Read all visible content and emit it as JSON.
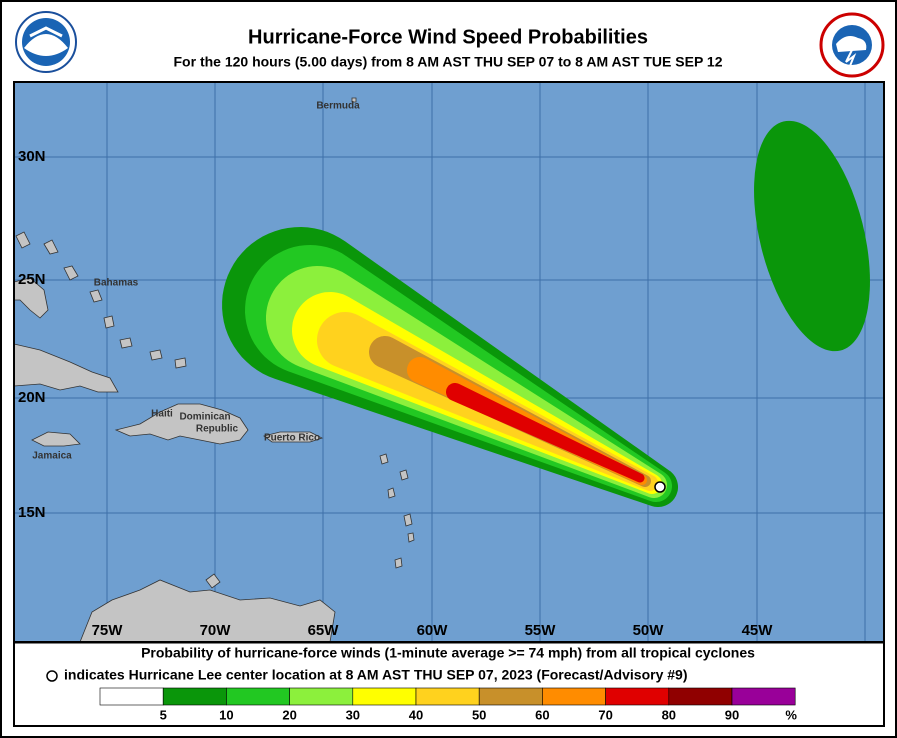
{
  "header": {
    "title": "Hurricane-Force Wind Speed Probabilities",
    "subtitle": "For the 120 hours (5.00 days) from 8 AM AST THU SEP 07 to 8 AM AST TUE SEP 12"
  },
  "map": {
    "lat_labels": [
      "30N",
      "25N",
      "20N",
      "15N"
    ],
    "lon_labels": [
      "75W",
      "70W",
      "65W",
      "60W",
      "55W",
      "50W",
      "45W"
    ],
    "places": [
      [
        "Bermuda"
      ],
      [
        "Bahamas"
      ],
      [
        "Haiti"
      ],
      [
        "Dominican",
        "Republic"
      ],
      [
        "Puerto Rico"
      ],
      [
        "Jamaica"
      ]
    ]
  },
  "legend": {
    "line1": "Probability of hurricane-force winds (1-minute average >= 74 mph) from all tropical cyclones",
    "line2": "indicates Hurricane Lee center location at 8 AM AST THU SEP 07, 2023 (Forecast/Advisory #9)",
    "scale": [
      5,
      10,
      20,
      30,
      40,
      50,
      60,
      70,
      80,
      90
    ],
    "unit": "%",
    "colors": [
      "#ffffff",
      "#0a960a",
      "#22c822",
      "#8cf03c",
      "#ffff00",
      "#ffd21e",
      "#c8902a",
      "#ff8c00",
      "#e00000",
      "#900000",
      "#990099"
    ]
  }
}
